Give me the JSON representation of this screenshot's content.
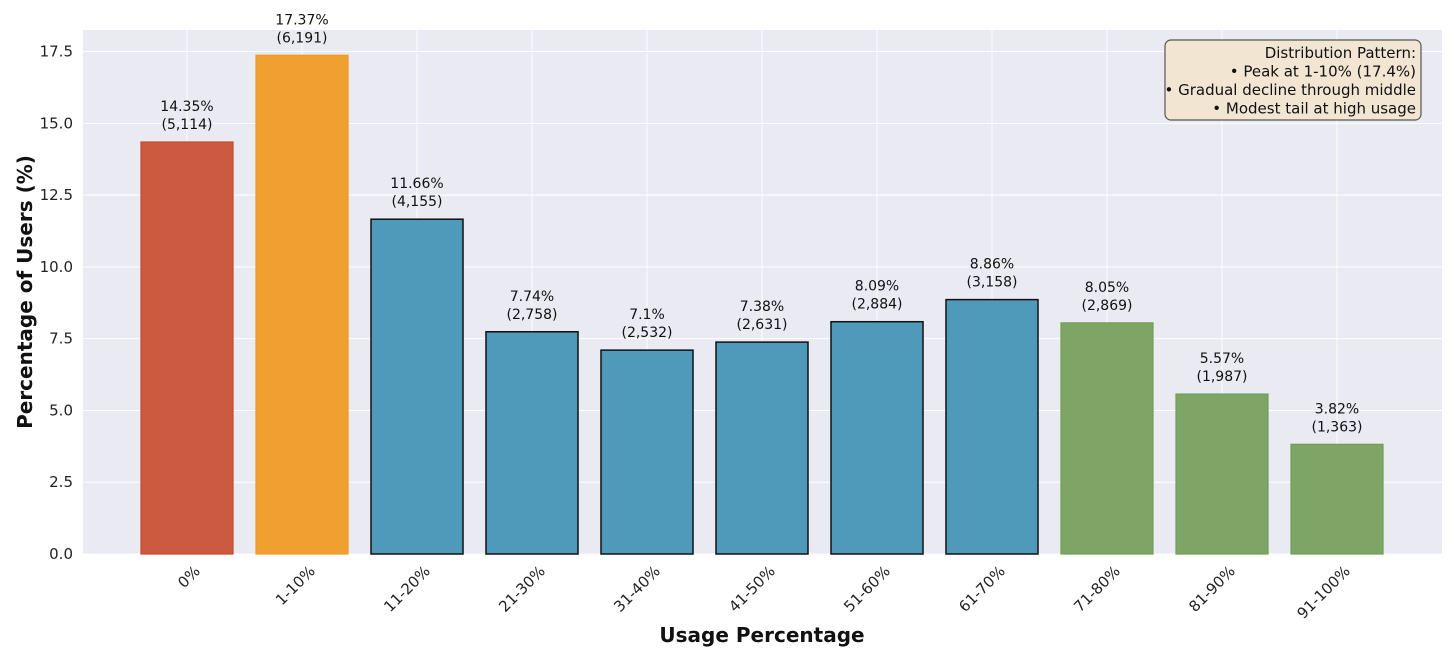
{
  "chart_data": {
    "type": "bar",
    "title": "",
    "xlabel": "Usage Percentage",
    "ylabel": "Percentage of Users (%)",
    "ylim": [
      0,
      18.25
    ],
    "yticks": [
      "0.0",
      "2.5",
      "5.0",
      "7.5",
      "10.0",
      "12.5",
      "15.0",
      "17.5"
    ],
    "ytick_values": [
      0,
      2.5,
      5,
      7.5,
      10,
      12.5,
      15,
      17.5
    ],
    "grid": true,
    "categories": [
      "0%",
      "1-10%",
      "11-20%",
      "21-30%",
      "31-40%",
      "41-50%",
      "51-60%",
      "61-70%",
      "71-80%",
      "81-90%",
      "91-100%"
    ],
    "values": [
      14.35,
      17.37,
      11.66,
      7.74,
      7.1,
      7.38,
      8.09,
      8.86,
      8.05,
      5.57,
      3.82
    ],
    "value_labels": [
      "14.35%",
      "17.37%",
      "11.66%",
      "7.74%",
      "7.1%",
      "7.38%",
      "8.09%",
      "8.86%",
      "8.05%",
      "5.57%",
      "3.82%"
    ],
    "count_labels": [
      "(5,114)",
      "(6,191)",
      "(4,155)",
      "(2,758)",
      "(2,532)",
      "(2,631)",
      "(2,884)",
      "(3,158)",
      "(2,869)",
      "(1,987)",
      "(1,363)"
    ],
    "bar_colors": [
      "#cc5a41",
      "#f0a030",
      "#4f99ba",
      "#4f99ba",
      "#4f99ba",
      "#4f99ba",
      "#4f99ba",
      "#4f99ba",
      "#7ea565",
      "#7ea565",
      "#7ea565"
    ],
    "bar_edge_colors": [
      "#c9482e",
      "#ef9825",
      "#111111",
      "#111111",
      "#111111",
      "#111111",
      "#111111",
      "#111111",
      "#6f9e55",
      "#6f9e55",
      "#6f9e55"
    ],
    "annotation": {
      "lines": [
        "Distribution Pattern:",
        "• Peak at 1-10% (17.4%)",
        "• Gradual decline through middle",
        "• Modest tail at high usage"
      ],
      "placement": "top-right",
      "background": "#f2e6d3",
      "border": "#555555"
    },
    "plot_background": "#eaeaf2",
    "grid_color": "#ffffff"
  }
}
